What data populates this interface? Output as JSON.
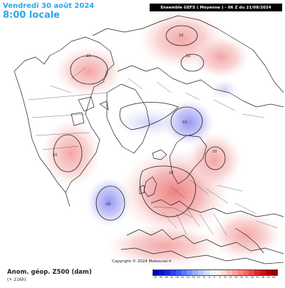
{
  "header": {
    "date_line": "Vendredi 30 août 2024",
    "time_line": "8:00 locale",
    "model_banner": "Ensemble GEFS  ( Moyenne )  -  06 Z du 21/08/2024"
  },
  "map": {
    "copyright": "Copyright © 2024 Meteociel.fr",
    "contour_labels": [
      {
        "text": "10",
        "kind": "positive"
      },
      {
        "text": "10",
        "kind": "positive"
      },
      {
        "text": "10",
        "kind": "positive"
      },
      {
        "text": "-10",
        "kind": "negative"
      },
      {
        "text": "10",
        "kind": "positive"
      },
      {
        "text": "10",
        "kind": "positive"
      },
      {
        "text": "10",
        "kind": "positive"
      },
      {
        "text": "-10",
        "kind": "negative"
      }
    ]
  },
  "legend": {
    "label": "Anom. géop. Z500 (dam)",
    "note": "(+ 216h)",
    "ticks": [
      "-44",
      "-40",
      "-36",
      "-32",
      "-28",
      "-24",
      "-20",
      "-16",
      "-12",
      "-8",
      "-4",
      "0",
      "4",
      "8",
      "12",
      "16",
      "20",
      "24",
      "28",
      "32",
      "36",
      "40",
      "44"
    ],
    "colors": [
      "#0000b4",
      "#0a14c8",
      "#1428dc",
      "#2840f0",
      "#3c5aff",
      "#5a78ff",
      "#7896ff",
      "#96b0ff",
      "#b4c8ff",
      "#d2deff",
      "#eef2ff",
      "#fff0f0",
      "#ffd8d8",
      "#ffbcbc",
      "#ffa0a0",
      "#ff8282",
      "#ff6464",
      "#f04646",
      "#dc2828",
      "#c81414",
      "#b40000",
      "#960000"
    ]
  },
  "colors": {
    "title_accent": "#2aa7e8",
    "positive_anomaly": "#f08a8a",
    "negative_anomaly": "#8a8af0"
  }
}
